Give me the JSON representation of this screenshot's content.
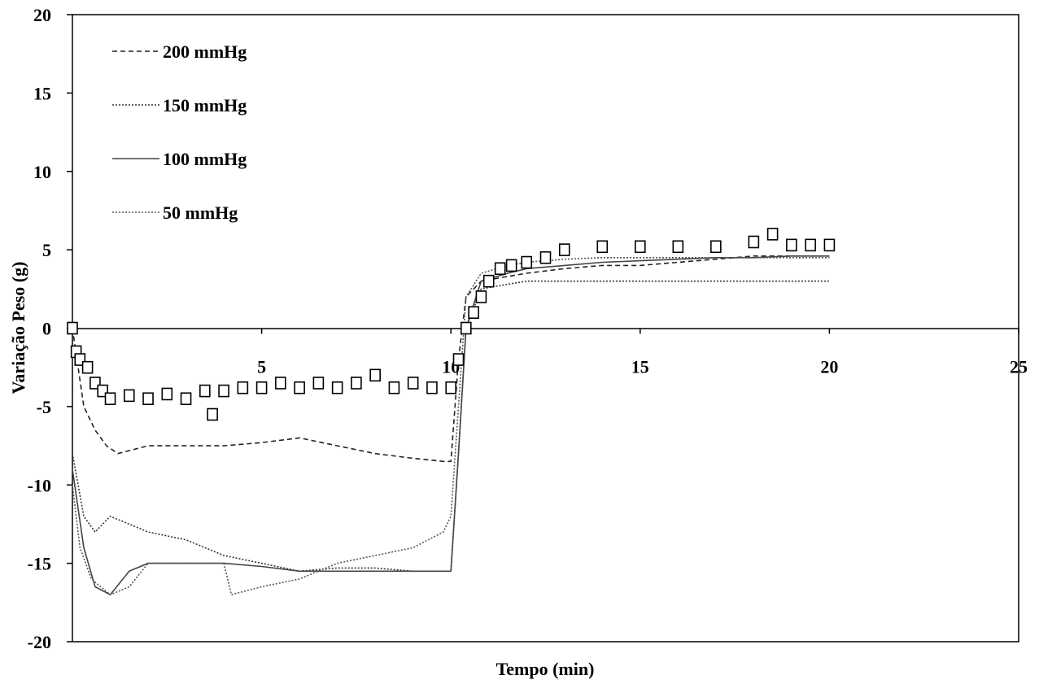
{
  "chart_data": {
    "type": "line",
    "title": "",
    "xlabel": "Tempo (min)",
    "ylabel": "Variação Peso (g)",
    "xlim": [
      0,
      25
    ],
    "ylim": [
      -20,
      20
    ],
    "xticks": [
      5,
      10,
      15,
      20,
      25
    ],
    "yticks": [
      20,
      15,
      10,
      5,
      0,
      -5,
      -10,
      -15,
      -20
    ],
    "grid": false,
    "legend_position": "top-left",
    "legend": [
      "200 mmHg",
      "150 mmHg",
      "100 mmHg",
      "50 mmHg"
    ],
    "series": [
      {
        "name": "200 mmHg",
        "style": "dashed",
        "color": "#222222",
        "x": [
          0,
          0.3,
          0.6,
          0.9,
          1.2,
          2.0,
          3.0,
          4.0,
          5.0,
          6.0,
          7.0,
          8.0,
          9.0,
          9.8,
          10.0,
          10.2,
          10.4,
          10.8,
          11.5,
          12.0,
          13.0,
          14.0,
          15.0,
          16.0,
          17.0,
          17.5,
          18.0,
          19.0,
          20.0
        ],
        "y": [
          0,
          -5,
          -6.5,
          -7.5,
          -8,
          -7.5,
          -7.5,
          -7.5,
          -7.3,
          -7.0,
          -7.5,
          -8.0,
          -8.3,
          -8.5,
          -8.5,
          -2,
          2,
          3,
          3.3,
          3.5,
          3.8,
          4.0,
          4.0,
          4.2,
          4.4,
          4.5,
          4.6,
          4.6,
          4.6
        ]
      },
      {
        "name": "150 mmHg",
        "style": "dotted",
        "color": "#333333",
        "x": [
          0,
          0.3,
          0.6,
          1.0,
          1.5,
          2.0,
          3.0,
          4.0,
          5.0,
          6.0,
          7.0,
          8.0,
          9.0,
          9.8,
          10.0,
          10.2,
          10.4,
          10.8,
          11.5,
          12.0,
          13.0,
          14.0,
          15.0,
          16.0,
          18.0,
          20.0
        ],
        "y": [
          -8,
          -12,
          -13,
          -12,
          -12.5,
          -13,
          -13.5,
          -14.5,
          -15,
          -15.5,
          -15.3,
          -15.3,
          -15.5,
          -15.5,
          -15.5,
          -8,
          0,
          2.5,
          2.8,
          3.0,
          3.0,
          3.0,
          3.0,
          3.0,
          3.0,
          3.0
        ]
      },
      {
        "name": "100 mmHg",
        "style": "solid",
        "color": "#444444",
        "x": [
          0,
          0.3,
          0.6,
          1.0,
          1.5,
          2.0,
          3.0,
          4.0,
          5.0,
          6.0,
          7.0,
          8.0,
          9.0,
          9.8,
          10.0,
          10.2,
          10.4,
          10.8,
          11.5,
          12.0,
          13.0,
          14.0,
          15.0,
          16.0,
          17.0,
          18.0,
          19.0,
          20.0
        ],
        "y": [
          -9,
          -14,
          -16.5,
          -17,
          -15.5,
          -15,
          -15,
          -15,
          -15.2,
          -15.5,
          -15.5,
          -15.5,
          -15.5,
          -15.5,
          -15.5,
          -8,
          0,
          3,
          3.5,
          3.8,
          4.0,
          4.2,
          4.3,
          4.4,
          4.5,
          4.5,
          4.6,
          4.6
        ]
      },
      {
        "name": "50 mmHg",
        "style": "dotted",
        "color": "#555555",
        "x": [
          0,
          0.2,
          0.5,
          1.0,
          1.5,
          2.0,
          3.0,
          4.0,
          4.2,
          5.0,
          6.0,
          7.0,
          8.0,
          9.0,
          9.8,
          10.0,
          10.2,
          10.4,
          10.8,
          11.5,
          12.0,
          13.0,
          14.0,
          15.0,
          16.0,
          17.0,
          18.0,
          19.0,
          20.0
        ],
        "y": [
          -10,
          -14,
          -16,
          -17,
          -16.5,
          -15,
          -15,
          -15,
          -17,
          -16.5,
          -16,
          -15,
          -14.5,
          -14,
          -13,
          -12,
          -5,
          2,
          3.5,
          4.0,
          4.2,
          4.4,
          4.5,
          4.5,
          4.5,
          4.5,
          4.5,
          4.5,
          4.5
        ]
      },
      {
        "name": "",
        "style": "square-markers",
        "color": "#000000",
        "x": [
          0,
          0.1,
          0.2,
          0.4,
          0.6,
          0.8,
          1.0,
          1.5,
          2.0,
          2.5,
          3.0,
          3.5,
          3.7,
          4.0,
          4.5,
          5.0,
          5.5,
          6.0,
          6.5,
          7.0,
          7.5,
          8.0,
          8.5,
          9.0,
          9.5,
          10.0,
          10.2,
          10.4,
          10.6,
          10.8,
          11.0,
          11.3,
          11.6,
          12.0,
          12.5,
          13.0,
          14.0,
          15.0,
          16.0,
          17.0,
          18.0,
          18.5,
          19.0,
          19.5,
          20.0
        ],
        "y": [
          0,
          -1.5,
          -2,
          -2.5,
          -3.5,
          -4,
          -4.5,
          -4.3,
          -4.5,
          -4.2,
          -4.5,
          -4.0,
          -5.5,
          -4.0,
          -3.8,
          -3.8,
          -3.5,
          -3.8,
          -3.5,
          -3.8,
          -3.5,
          -3.0,
          -3.8,
          -3.5,
          -3.8,
          -3.8,
          -2.0,
          0.0,
          1.0,
          2.0,
          3.0,
          3.8,
          4.0,
          4.2,
          4.5,
          5.0,
          5.2,
          5.2,
          5.2,
          5.2,
          5.5,
          6.0,
          5.3,
          5.3,
          5.3
        ]
      }
    ]
  }
}
